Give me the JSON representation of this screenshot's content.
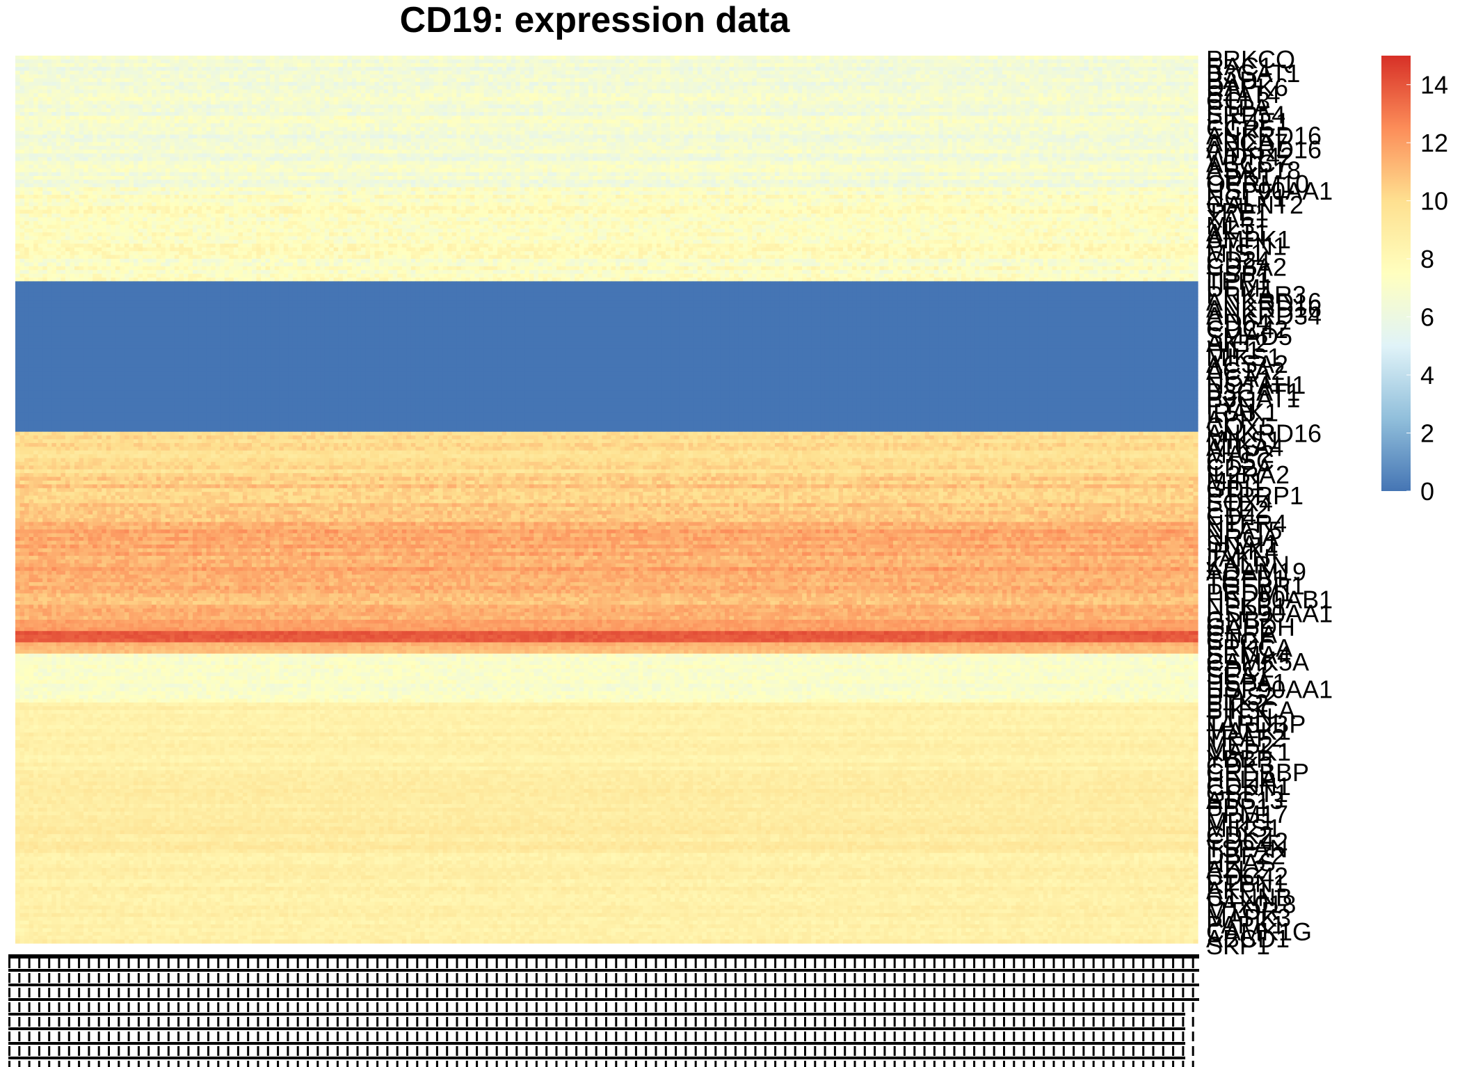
{
  "chart_data": {
    "type": "heatmap",
    "title": "CD19: expression data",
    "xlabel": "",
    "ylabel": "",
    "n_columns": 260,
    "row_labels": [
      "PRKCQ",
      "RAC1",
      "B3GAT1",
      "BAD",
      "DAPK6",
      "STAT4",
      "CCL3",
      "PTPA",
      "SRP54",
      "EIF4E1",
      "CCR5",
      "ANKRD16",
      "ABCA7",
      "ANKRD16",
      "WDR42",
      "ABCC7",
      "ASAP18",
      "CDK1",
      "OPRM10",
      "HSP90AA1",
      "NGLY1",
      "GALNT2",
      "TPP1",
      "XAF1",
      "ML3",
      "AKT1",
      "AMPK1",
      "PTEN1",
      "MIS1",
      "CD24",
      "CD8A2",
      "HSP1",
      "TPR1",
      "UFM1",
      "PRKAR3",
      "ANKRD16",
      "ANKRD16",
      "ANKRD34",
      "CD64",
      "CDC42",
      "SMAD5",
      "AKT2",
      "HIF1",
      "MIKS1",
      "ACSA2",
      "ACTA2",
      "HCA1",
      "NOTAH1",
      "B3GAT1",
      "B3GAT1",
      "FYN",
      "IRAK1",
      "APP",
      "COX5",
      "ANKRD16",
      "MIKS1",
      "ATKA4",
      "MAP2",
      "CTSC",
      "CD2A",
      "IL2RA2",
      "MIP1",
      "GDI1",
      "PTPRP1",
      "SOX4",
      "ETP2",
      "CD4",
      "NTFR4",
      "NFAT5",
      "NRGA",
      "SNAI1",
      "IRAK4",
      "JAKN",
      "KALRN",
      "ADAM19",
      "TGFB1",
      "TGFBR1",
      "PRDM1",
      "HSP90AB1",
      "NFKB1",
      "HSP90AA1",
      "GNB2",
      "GAPDH",
      "CNRA",
      "CTGF",
      "PRKCA",
      "SEMA4",
      "CAMK5A",
      "CDC2",
      "SEA1",
      "HSPA1",
      "HSP90AA1",
      "PIAS2",
      "PTK2",
      "PIK3CA",
      "PTEN",
      "TARDBP",
      "MAPK1",
      "TRAF2",
      "MEF2",
      "MAPK1",
      "YBBP",
      "CDK3",
      "CREBBP",
      "HFLIA",
      "CDKN1",
      "GSPT1",
      "ATG13",
      "PPP1",
      "PPM17",
      "MPP1",
      "MIKS1",
      "CDK2",
      "CDC42",
      "TSPAN",
      "DBFZ2",
      "HRAS",
      "AZL2",
      "CDC42",
      "PTPN1",
      "AKP1",
      "CTNNB",
      "PAX018",
      "MTOR",
      "MAPK3",
      "PAPK1",
      "CAMK1G",
      "ABCD1",
      "SKP1"
    ],
    "bands": [
      {
        "rows": 35,
        "range": [
          5.5,
          7.8
        ]
      },
      {
        "rows": 25,
        "range": [
          6.0,
          8.8
        ]
      },
      {
        "rows": 40,
        "range": [
          0,
          0
        ]
      },
      {
        "rows": 12,
        "range": [
          9.0,
          10.8
        ]
      },
      {
        "rows": 12,
        "range": [
          9.5,
          11.6
        ]
      },
      {
        "rows": 18,
        "range": [
          10.5,
          12.6
        ]
      },
      {
        "rows": 8,
        "range": [
          10.2,
          12.2
        ]
      },
      {
        "rows": 3,
        "range": [
          11.5,
          12.8
        ]
      },
      {
        "rows": 3,
        "range": [
          13.5,
          14.6
        ]
      },
      {
        "rows": 3,
        "range": [
          10.5,
          11.8
        ]
      },
      {
        "rows": 13,
        "range": [
          6.2,
          8.2
        ]
      },
      {
        "rows": 18,
        "range": [
          8.0,
          9.3
        ]
      },
      {
        "rows": 22,
        "range": [
          8.3,
          9.8
        ]
      },
      {
        "rows": 24,
        "range": [
          8.0,
          9.5
        ]
      }
    ],
    "legend": {
      "placement": "right",
      "min": 0,
      "max": 15,
      "ticks": [
        "0",
        "2",
        "4",
        "6",
        "8",
        "10",
        "12",
        "14"
      ],
      "colors": [
        "#4575B4",
        "#91BFDB",
        "#E0F3F8",
        "#FFFFBF",
        "#FEE090",
        "#FC8D59",
        "#D73027"
      ]
    },
    "grid": false
  }
}
